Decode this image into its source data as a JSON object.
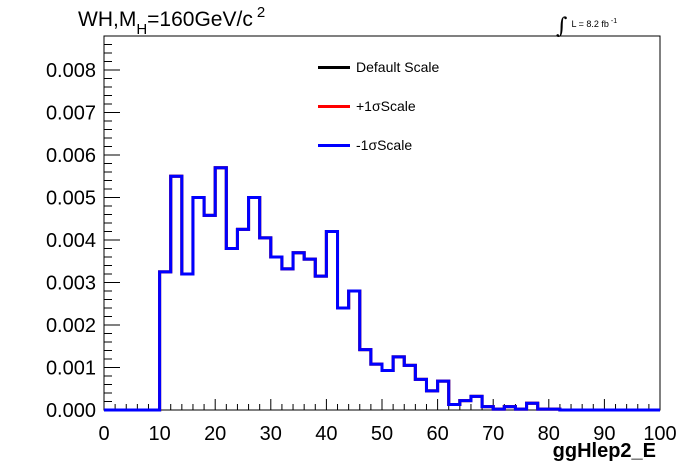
{
  "header": {
    "title_main": "WH,M",
    "title_sub": "H",
    "title_rest": "=160GeV/c",
    "title_sup": "2",
    "lumi_integral": "∫",
    "lumi_text": "L = 8.2 fb",
    "lumi_exp": "-1"
  },
  "legend": {
    "items": [
      {
        "label": "Default Scale",
        "color": "#000000"
      },
      {
        "label": "+1σScale",
        "color": "#ff0000"
      },
      {
        "label": "-1σScale",
        "color": "#0000ff"
      }
    ]
  },
  "axes": {
    "xlabel": "ggHlep2_E"
  },
  "chart_data": {
    "type": "histogram",
    "title": "WH,M_H=160GeV/c^2",
    "xlabel": "ggHlep2_E",
    "ylabel": "",
    "xlim": [
      0,
      100
    ],
    "ylim": [
      0,
      0.0088
    ],
    "grid": false,
    "legend_position": "top-center",
    "x_ticks": [
      0,
      10,
      20,
      30,
      40,
      50,
      60,
      70,
      80,
      90,
      100
    ],
    "y_ticks": [
      0.0,
      0.001,
      0.002,
      0.003,
      0.004,
      0.005,
      0.006,
      0.007,
      0.008
    ],
    "y_tick_labels": [
      "0.000",
      "0.001",
      "0.002",
      "0.003",
      "0.004",
      "0.005",
      "0.006",
      "0.007",
      "0.008"
    ],
    "bin_edges": [
      0,
      2,
      4,
      6,
      8,
      10,
      12,
      14,
      16,
      18,
      20,
      22,
      24,
      26,
      28,
      30,
      32,
      34,
      36,
      38,
      40,
      42,
      44,
      46,
      48,
      50,
      52,
      54,
      56,
      58,
      60,
      62,
      64,
      66,
      68,
      70,
      72,
      74,
      76,
      78,
      80,
      82,
      84,
      86,
      88,
      90,
      92,
      94,
      96,
      98,
      100
    ],
    "series": [
      {
        "name": "Default Scale",
        "color": "#000000",
        "values": [
          0,
          0,
          0,
          0,
          0,
          0.00325,
          0.0055,
          0.0032,
          0.005,
          0.00458,
          0.0057,
          0.0038,
          0.00425,
          0.005,
          0.00405,
          0.0036,
          0.00332,
          0.0037,
          0.00355,
          0.00315,
          0.0042,
          0.0024,
          0.0028,
          0.00142,
          0.00108,
          0.00093,
          0.00125,
          0.00105,
          0.00072,
          0.00045,
          0.00068,
          0.00013,
          0.00022,
          0.00032,
          8e-05,
          2e-05,
          8e-05,
          2e-05,
          0.00016,
          2e-05,
          2e-05,
          0.0,
          0.0,
          0.0,
          0.0,
          0.0,
          0.0,
          0.0,
          0.0,
          0.0
        ]
      },
      {
        "name": "+1σScale",
        "color": "#ff0000",
        "values": [
          0,
          0,
          0,
          0,
          0,
          0.00325,
          0.0055,
          0.0032,
          0.005,
          0.00458,
          0.0057,
          0.0038,
          0.00425,
          0.005,
          0.00405,
          0.0036,
          0.00332,
          0.0037,
          0.00355,
          0.00315,
          0.0042,
          0.0024,
          0.0028,
          0.00142,
          0.00108,
          0.00093,
          0.00125,
          0.00105,
          0.00072,
          0.00045,
          0.00068,
          0.00013,
          0.00022,
          0.00032,
          8e-05,
          2e-05,
          8e-05,
          2e-05,
          0.00016,
          2e-05,
          2e-05,
          0.0,
          0.0,
          0.0,
          0.0,
          0.0,
          0.0,
          0.0,
          0.0,
          0.0
        ]
      },
      {
        "name": "-1σScale",
        "color": "#0000ff",
        "values": [
          0,
          0,
          0,
          0,
          0,
          0.00325,
          0.0055,
          0.0032,
          0.005,
          0.00458,
          0.0057,
          0.0038,
          0.00425,
          0.005,
          0.00405,
          0.0036,
          0.00332,
          0.0037,
          0.00355,
          0.00315,
          0.0042,
          0.0024,
          0.0028,
          0.00142,
          0.00108,
          0.00093,
          0.00125,
          0.00105,
          0.00072,
          0.00045,
          0.00068,
          0.00013,
          0.00022,
          0.00032,
          8e-05,
          2e-05,
          8e-05,
          2e-05,
          0.00016,
          2e-05,
          2e-05,
          0.0,
          0.0,
          0.0,
          0.0,
          0.0,
          0.0,
          0.0,
          0.0,
          0.0
        ]
      }
    ]
  }
}
